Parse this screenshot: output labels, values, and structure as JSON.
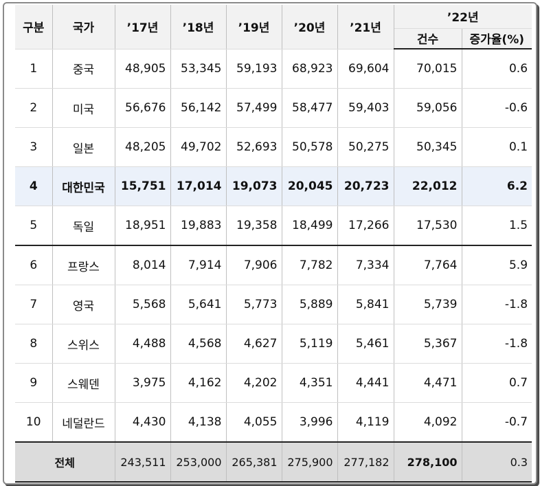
{
  "headers": {
    "rank": "구분",
    "country": "국가",
    "years": [
      "’17년",
      "’18년",
      "’19년",
      "’20년",
      "’21년"
    ],
    "year22": "’22년",
    "count": "건수",
    "growth": "증가율(%)"
  },
  "rows": [
    {
      "rank": "1",
      "country": "중국",
      "v17": "48,905",
      "v18": "53,345",
      "v19": "59,193",
      "v20": "68,923",
      "v21": "69,604",
      "v22": "70,015",
      "growth": "0.6"
    },
    {
      "rank": "2",
      "country": "미국",
      "v17": "56,676",
      "v18": "56,142",
      "v19": "57,499",
      "v20": "58,477",
      "v21": "59,403",
      "v22": "59,056",
      "growth": "-0.6"
    },
    {
      "rank": "3",
      "country": "일본",
      "v17": "48,205",
      "v18": "49,702",
      "v19": "52,693",
      "v20": "50,578",
      "v21": "50,275",
      "v22": "50,345",
      "growth": "0.1"
    },
    {
      "rank": "4",
      "country": "대한민국",
      "v17": "15,751",
      "v18": "17,014",
      "v19": "19,073",
      "v20": "20,045",
      "v21": "20,723",
      "v22": "22,012",
      "growth": "6.2"
    },
    {
      "rank": "5",
      "country": "독일",
      "v17": "18,951",
      "v18": "19,883",
      "v19": "19,358",
      "v20": "18,499",
      "v21": "17,266",
      "v22": "17,530",
      "growth": "1.5"
    },
    {
      "rank": "6",
      "country": "프랑스",
      "v17": "8,014",
      "v18": "7,914",
      "v19": "7,906",
      "v20": "7,782",
      "v21": "7,334",
      "v22": "7,764",
      "growth": "5.9"
    },
    {
      "rank": "7",
      "country": "영국",
      "v17": "5,568",
      "v18": "5,641",
      "v19": "5,773",
      "v20": "5,889",
      "v21": "5,841",
      "v22": "5,739",
      "growth": "-1.8"
    },
    {
      "rank": "8",
      "country": "스위스",
      "v17": "4,488",
      "v18": "4,568",
      "v19": "4,627",
      "v20": "5,119",
      "v21": "5,461",
      "v22": "5,367",
      "growth": "-1.8"
    },
    {
      "rank": "9",
      "country": "스웨덴",
      "v17": "3,975",
      "v18": "4,162",
      "v19": "4,202",
      "v20": "4,351",
      "v21": "4,441",
      "v22": "4,471",
      "growth": "0.7"
    },
    {
      "rank": "10",
      "country": "네덜란드",
      "v17": "4,430",
      "v18": "4,138",
      "v19": "4,055",
      "v20": "3,996",
      "v21": "4,119",
      "v22": "4,092",
      "growth": "-0.7"
    }
  ],
  "total": {
    "label": "전체",
    "v17": "243,511",
    "v18": "253,000",
    "v19": "265,381",
    "v20": "275,900",
    "v21": "277,182",
    "v22": "278,100",
    "growth": "0.3"
  }
}
